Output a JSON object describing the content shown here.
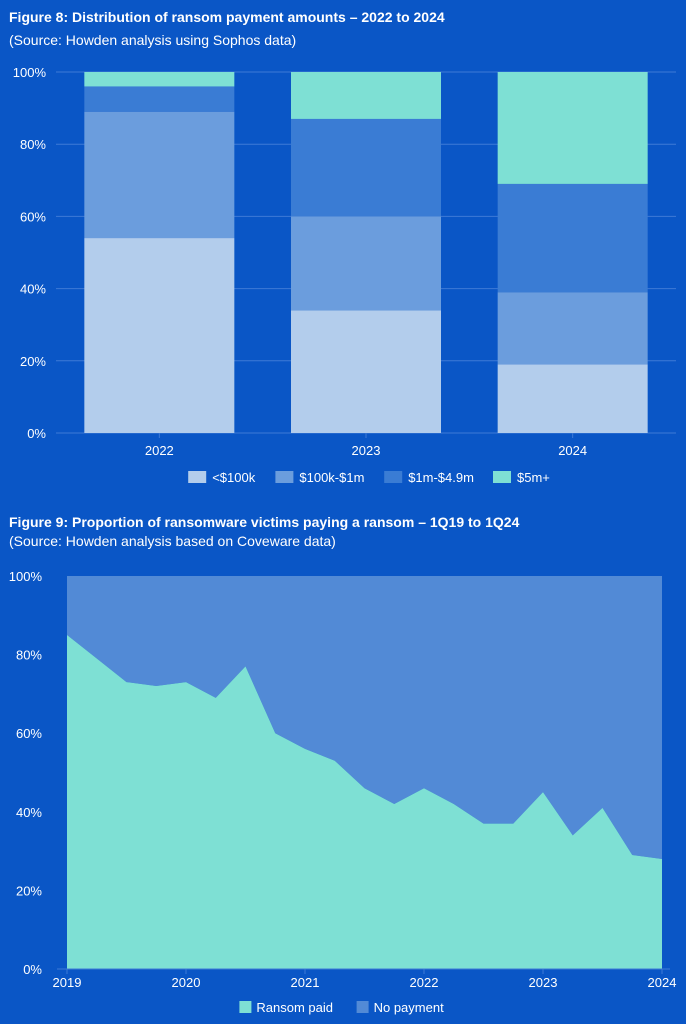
{
  "figure8": {
    "title": "Figure 8: Distribution of ransom payment amounts – 2022 to 2024",
    "source": "(Source: Howden analysis using Sophos data)"
  },
  "figure9": {
    "title": "Figure 9: Proportion of ransomware victims paying a ransom – 1Q19 to 1Q24",
    "source": "(Source: Howden analysis based on Coveware data)"
  },
  "chart_data": [
    {
      "type": "bar",
      "stacked": true,
      "title": "Figure 8: Distribution of ransom payment amounts – 2022 to 2024",
      "categories": [
        "2022",
        "2023",
        "2024"
      ],
      "y_ticks": [
        "0%",
        "20%",
        "40%",
        "60%",
        "80%",
        "100%"
      ],
      "ylim": [
        0,
        100
      ],
      "grid": true,
      "legend_position": "bottom",
      "series": [
        {
          "name": "<$100k",
          "values": [
            54,
            34,
            19
          ],
          "color": "#b3cdec"
        },
        {
          "name": "$100k-$1m",
          "values": [
            35,
            26,
            20
          ],
          "color": "#6b9ddd"
        },
        {
          "name": "$1m-$4.9m",
          "values": [
            7,
            27,
            30
          ],
          "color": "#3a7cd4"
        },
        {
          "name": "$5m+",
          "values": [
            4,
            13,
            31
          ],
          "color": "#7ee0d4"
        }
      ]
    },
    {
      "type": "area",
      "stacked": true,
      "title": "Figure 9: Proportion of ransomware victims paying a ransom – 1Q19 to 1Q24",
      "x_ticks": [
        "2019",
        "2020",
        "2021",
        "2022",
        "2023",
        "2024"
      ],
      "y_ticks": [
        "0%",
        "20%",
        "40%",
        "60%",
        "80%",
        "100%"
      ],
      "ylim": [
        0,
        100
      ],
      "legend_position": "bottom",
      "x": [
        "1Q19",
        "2Q19",
        "3Q19",
        "4Q19",
        "1Q20",
        "2Q20",
        "3Q20",
        "4Q20",
        "1Q21",
        "2Q21",
        "3Q21",
        "4Q21",
        "1Q22",
        "2Q22",
        "3Q22",
        "4Q22",
        "1Q23",
        "2Q23",
        "3Q23",
        "4Q23",
        "1Q24"
      ],
      "series": [
        {
          "name": "Ransom paid",
          "values": [
            85,
            79,
            73,
            72,
            73,
            69,
            77,
            60,
            56,
            53,
            46,
            42,
            46,
            42,
            37,
            37,
            45,
            34,
            41,
            29,
            28
          ],
          "color": "#7ee0d4"
        },
        {
          "name": "No payment",
          "values": [
            15,
            21,
            27,
            28,
            27,
            31,
            23,
            40,
            44,
            47,
            54,
            58,
            54,
            58,
            63,
            63,
            55,
            66,
            59,
            71,
            72
          ],
          "color": "#528ad6"
        }
      ]
    }
  ]
}
